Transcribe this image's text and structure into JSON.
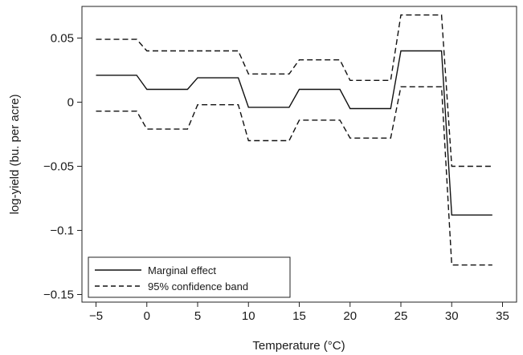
{
  "chart_data": {
    "type": "line",
    "xlabel": "Temperature (°C)",
    "ylabel": "log-yield (bu. per acre)",
    "xlim": [
      -5,
      35
    ],
    "ylim": [
      -0.155,
      0.065
    ],
    "xticks": [
      -5,
      0,
      5,
      10,
      15,
      20,
      25,
      30,
      35
    ],
    "xtick_labels": [
      "−5",
      "0",
      "5",
      "10",
      "15",
      "20",
      "25",
      "30",
      "35"
    ],
    "yticks": [
      0.05,
      0,
      -0.05,
      -0.1,
      -0.15
    ],
    "ytick_labels": [
      "0.05",
      "0",
      "−0.05",
      "−0.1",
      "−0.15"
    ],
    "grid": false,
    "legend_position": "bottom-left",
    "series": [
      {
        "name": "Marginal effect",
        "style": "solid",
        "x": [
          -5,
          -1,
          0,
          4,
          5,
          9,
          10,
          14,
          15,
          19,
          20,
          24,
          25,
          29,
          30,
          34
        ],
        "y": [
          0.021,
          0.021,
          0.01,
          0.01,
          0.019,
          0.019,
          -0.004,
          -0.004,
          0.01,
          0.01,
          -0.005,
          -0.005,
          0.04,
          0.04,
          -0.088,
          -0.088
        ]
      },
      {
        "name": "95% confidence band",
        "style": "dashed",
        "x": [
          -5,
          -1,
          0,
          4,
          5,
          9,
          10,
          14,
          15,
          19,
          20,
          24,
          25,
          29,
          30,
          34
        ],
        "y": [
          0.049,
          0.049,
          0.04,
          0.04,
          0.04,
          0.04,
          0.022,
          0.022,
          0.033,
          0.033,
          0.017,
          0.017,
          0.068,
          0.068,
          -0.05,
          -0.05
        ]
      },
      {
        "name": "",
        "style": "dashed",
        "x": [
          -5,
          -1,
          0,
          4,
          5,
          9,
          10,
          14,
          15,
          19,
          20,
          24,
          25,
          29,
          30,
          34
        ],
        "y": [
          -0.007,
          -0.007,
          -0.021,
          -0.021,
          -0.002,
          -0.002,
          -0.03,
          -0.03,
          -0.014,
          -0.014,
          -0.028,
          -0.028,
          0.012,
          0.012,
          -0.127,
          -0.127
        ]
      }
    ]
  }
}
